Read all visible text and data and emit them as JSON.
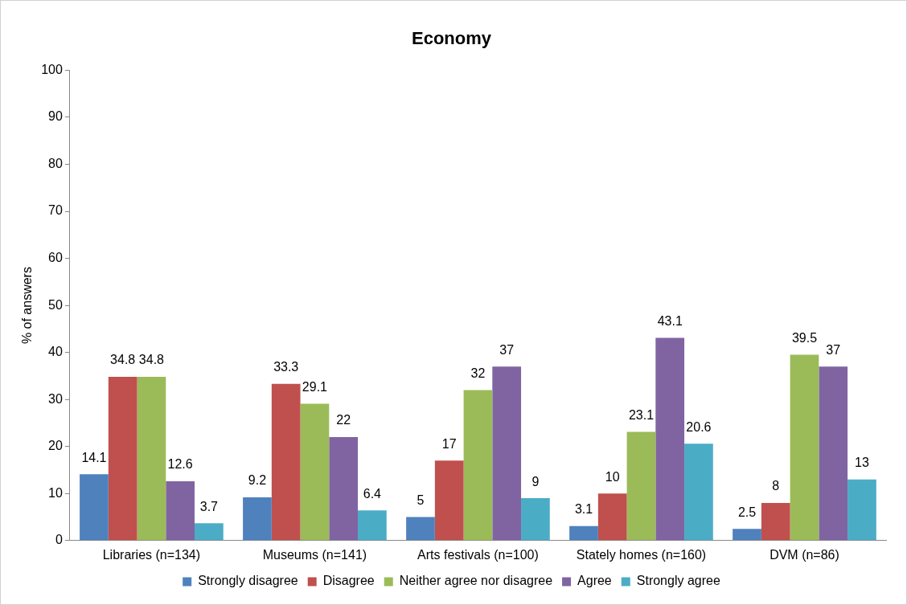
{
  "chart_data": {
    "type": "bar",
    "title": "Economy",
    "ylabel": "% of answers",
    "categories": [
      "Libraries (n=134)",
      "Museums (n=141)",
      "Arts festivals (n=100)",
      "Stately homes (n=160)",
      "DVM (n=86)"
    ],
    "series": [
      {
        "name": "Strongly disagree",
        "color": "#4f81bd",
        "values": [
          14.1,
          9.2,
          5,
          3.1,
          2.5
        ]
      },
      {
        "name": "Disagree",
        "color": "#c0504d",
        "values": [
          34.8,
          33.3,
          17,
          10,
          8
        ]
      },
      {
        "name": "Neither agree nor disagree",
        "color": "#9bbb59",
        "values": [
          34.8,
          29.1,
          32,
          23.1,
          39.5
        ]
      },
      {
        "name": "Agree",
        "color": "#8064a2",
        "values": [
          12.6,
          22,
          37,
          43.1,
          37
        ]
      },
      {
        "name": "Strongly agree",
        "color": "#4bacc6",
        "values": [
          3.7,
          6.4,
          9,
          20.6,
          13
        ]
      }
    ],
    "ylim": [
      0,
      100
    ],
    "yticks": [
      0,
      10,
      20,
      30,
      40,
      50,
      60,
      70,
      80,
      90,
      100
    ],
    "grid": false,
    "legend": "bottom",
    "data_labels": true
  }
}
